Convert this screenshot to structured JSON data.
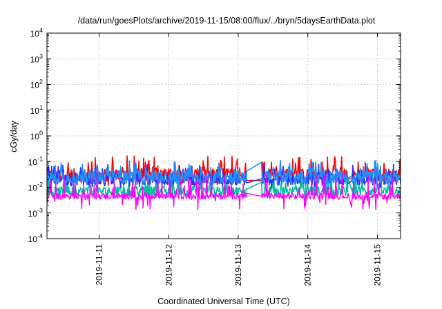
{
  "chart_data": {
    "type": "line",
    "title": "/data/run/goesPlots/archive/2019-11-15/08:00/flux/../bryn/5daysEarthData.plot",
    "xlabel": "Coordinated Universal Time (UTC)",
    "ylabel": "cGy/day",
    "y_scale": "log",
    "ylim": [
      0.0001,
      10000
    ],
    "y_ticks": [
      {
        "base": "10",
        "exp": "-4"
      },
      {
        "base": "10",
        "exp": "-3"
      },
      {
        "base": "10",
        "exp": "-2"
      },
      {
        "base": "10",
        "exp": "-1"
      },
      {
        "base": "10",
        "exp": "0"
      },
      {
        "base": "10",
        "exp": "1"
      },
      {
        "base": "10",
        "exp": "2"
      },
      {
        "base": "10",
        "exp": "3"
      },
      {
        "base": "10",
        "exp": "4"
      }
    ],
    "xlim": [
      "2019-11-10 06:00",
      "2019-11-15 08:00"
    ],
    "x_ticks": [
      "2019-11-11",
      "2019-11-12",
      "2019-11-13",
      "2019-11-14",
      "2019-11-15"
    ],
    "grid": true,
    "legend": "none",
    "series": [
      {
        "color": "#ff0000",
        "level": 0.03,
        "spread": 0.25,
        "spikes": 0.75,
        "gaps": [
          [
            "2019-11-13 03:00",
            "2019-11-13 08:00"
          ],
          [
            "2019-11-14 14:00",
            "2019-11-14 15:00"
          ]
        ]
      },
      {
        "color": "#00bfa0",
        "level": 0.007,
        "spread": 0.18,
        "spikes": 0.55,
        "gaps": [
          [
            "2019-11-13 03:00",
            "2019-11-13 08:00"
          ],
          [
            "2019-11-14 14:00",
            "2019-11-14 15:00"
          ]
        ]
      },
      {
        "color": "#3030ff",
        "level": 0.02,
        "spread": 0.22,
        "spikes": 0.6,
        "gaps": [
          [
            "2019-11-13 03:00",
            "2019-11-13 08:00"
          ],
          [
            "2019-11-14 14:00",
            "2019-11-14 15:00"
          ]
        ]
      },
      {
        "color": "#2090ff",
        "level": 0.025,
        "spread": 0.25,
        "spikes": 0.65,
        "gaps": [
          [
            "2019-11-13 03:00",
            "2019-11-13 08:00"
          ],
          [
            "2019-11-14 14:00",
            "2019-11-14 15:00"
          ]
        ]
      },
      {
        "color": "#ff00ff",
        "level": 0.0045,
        "spread": 0.12,
        "spikes": 0.9,
        "gaps": [
          [
            "2019-11-13 03:00",
            "2019-11-13 08:00"
          ],
          [
            "2019-11-14 14:00",
            "2019-11-14 15:00"
          ]
        ]
      }
    ]
  }
}
